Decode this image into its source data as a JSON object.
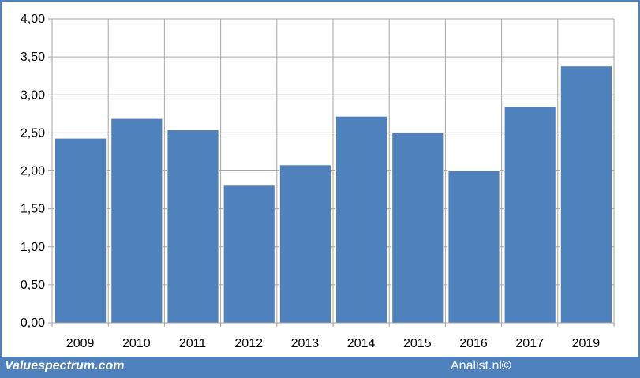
{
  "chart_data": {
    "type": "bar",
    "categories": [
      "2009",
      "2010",
      "2011",
      "2012",
      "2013",
      "2014",
      "2015",
      "2016",
      "2017",
      "2019"
    ],
    "values": [
      2.43,
      2.69,
      2.54,
      1.81,
      2.08,
      2.72,
      2.5,
      2.0,
      2.85,
      3.38
    ],
    "title": "",
    "xlabel": "",
    "ylabel": "",
    "ylim": [
      0,
      4
    ],
    "yticks": [
      "0,00",
      "0,50",
      "1,00",
      "1,50",
      "2,00",
      "2,50",
      "3,00",
      "3,50",
      "4,00"
    ],
    "grid": true,
    "legend": "none",
    "bar_color": "#4f81bd"
  },
  "footer": {
    "left_text": "Valuespectrum.com",
    "right_text": "Analist.nl©"
  },
  "colors": {
    "accent": "#4f81bd",
    "grid": "#a6a6a6"
  }
}
